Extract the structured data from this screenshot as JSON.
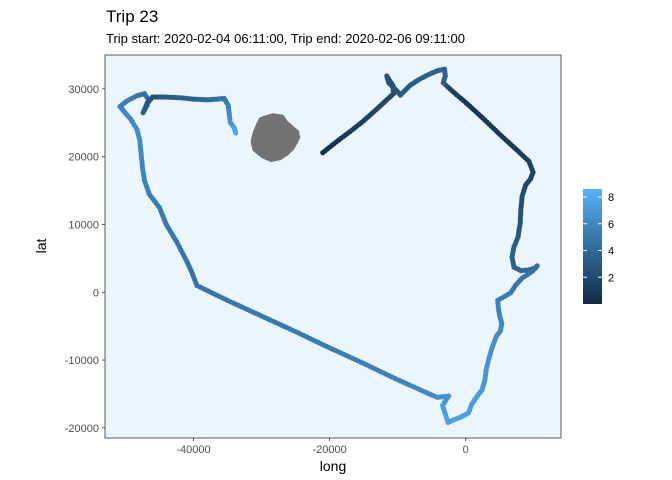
{
  "chart_data": {
    "type": "scatter",
    "title": "Trip 23",
    "subtitle": "Trip start: 2020-02-04 06:11:00, Trip end: 2020-02-06 09:11:00",
    "xlabel": "long",
    "ylabel": "lat",
    "xlim": [
      -53000,
      14000
    ],
    "ylim": [
      -21500,
      35000
    ],
    "xticks": [
      -40000,
      -20000,
      0
    ],
    "yticks": [
      -20000,
      -10000,
      0,
      10000,
      20000,
      30000
    ],
    "grid": false,
    "panel_background": "#eaf5fe",
    "legend": {
      "placement": "right",
      "ticks": [
        2,
        4,
        6,
        8
      ],
      "range": [
        0,
        8.6
      ],
      "color_low": "#132b43",
      "color_high": "#56b1f7"
    },
    "island": {
      "fill": "#737373",
      "outline": [
        [
          -30300,
          25800
        ],
        [
          -28400,
          26400
        ],
        [
          -26800,
          26200
        ],
        [
          -26200,
          25300
        ],
        [
          -25300,
          24500
        ],
        [
          -24500,
          23800
        ],
        [
          -24300,
          22800
        ],
        [
          -24700,
          22000
        ],
        [
          -25200,
          21100
        ],
        [
          -26100,
          20200
        ],
        [
          -27200,
          19500
        ],
        [
          -28600,
          19200
        ],
        [
          -30000,
          19800
        ],
        [
          -31300,
          20900
        ],
        [
          -31600,
          22200
        ],
        [
          -31300,
          23600
        ],
        [
          -30800,
          24800
        ]
      ]
    },
    "track": [
      [
        -21000,
        20600,
        0.2
      ],
      [
        -19000,
        22200,
        0.6
      ],
      [
        -17000,
        23700,
        1.0
      ],
      [
        -15000,
        25300,
        1.3
      ],
      [
        -13200,
        26900,
        1.6
      ],
      [
        -11800,
        28200,
        1.8
      ],
      [
        -10600,
        29300,
        2.0
      ],
      [
        -10700,
        30500,
        2.2
      ],
      [
        -11600,
        31900,
        2.4
      ],
      [
        -11300,
        30900,
        2.5
      ],
      [
        -10300,
        29900,
        2.6
      ],
      [
        -9600,
        29100,
        2.8
      ],
      [
        -9000,
        29700,
        3.0
      ],
      [
        -8200,
        30500,
        3.1
      ],
      [
        -7000,
        31300,
        3.2
      ],
      [
        -5500,
        32100,
        3.3
      ],
      [
        -4100,
        32700,
        3.4
      ],
      [
        -3100,
        32900,
        3.5
      ],
      [
        -3000,
        31900,
        3.5
      ],
      [
        -3300,
        30900,
        3.4
      ],
      [
        -2000,
        29700,
        1.2
      ],
      [
        0,
        28000,
        0.8
      ],
      [
        2500,
        25700,
        0.8
      ],
      [
        5000,
        23300,
        0.9
      ],
      [
        7500,
        21000,
        1.1
      ],
      [
        9300,
        19300,
        1.3
      ],
      [
        9900,
        17700,
        1.5
      ],
      [
        9500,
        16700,
        1.6
      ],
      [
        8800,
        15800,
        1.8
      ],
      [
        8300,
        14200,
        2.1
      ],
      [
        8100,
        12200,
        2.4
      ],
      [
        8000,
        10200,
        2.6
      ],
      [
        7700,
        8200,
        2.8
      ],
      [
        7100,
        6700,
        3.1
      ],
      [
        6800,
        5200,
        3.4
      ],
      [
        7100,
        3700,
        3.6
      ],
      [
        8100,
        3200,
        3.8
      ],
      [
        9300,
        3300,
        4.0
      ],
      [
        10300,
        3600,
        4.1
      ],
      [
        10500,
        3900,
        4.3
      ],
      [
        9800,
        3100,
        4.5
      ],
      [
        8300,
        2100,
        4.7
      ],
      [
        7300,
        1000,
        4.9
      ],
      [
        6600,
        -100,
        5.1
      ],
      [
        5400,
        -800,
        5.3
      ],
      [
        4700,
        -1200,
        5.5
      ],
      [
        4800,
        -2400,
        5.6
      ],
      [
        5000,
        -3500,
        5.8
      ],
      [
        5300,
        -4600,
        5.9
      ],
      [
        5100,
        -5700,
        6.1
      ],
      [
        4500,
        -6500,
        6.3
      ],
      [
        3900,
        -8100,
        6.4
      ],
      [
        3400,
        -9800,
        6.6
      ],
      [
        3000,
        -11500,
        6.8
      ],
      [
        2800,
        -13000,
        6.9
      ],
      [
        2400,
        -14400,
        7.1
      ],
      [
        1700,
        -15300,
        7.2
      ],
      [
        900,
        -16500,
        7.3
      ],
      [
        400,
        -17800,
        7.4
      ],
      [
        -700,
        -18400,
        7.5
      ],
      [
        -1700,
        -18800,
        7.6
      ],
      [
        -2600,
        -19200,
        7.7
      ],
      [
        -3400,
        -16700,
        7.1
      ],
      [
        -2500,
        -15300,
        6.8
      ],
      [
        -4200,
        -15500,
        6.4
      ],
      [
        -6000,
        -14700,
        6.0
      ],
      [
        -10000,
        -12900,
        5.6
      ],
      [
        -15000,
        -10500,
        5.4
      ],
      [
        -20000,
        -8200,
        5.2
      ],
      [
        -25000,
        -5800,
        5.0
      ],
      [
        -30000,
        -3500,
        4.9
      ],
      [
        -35000,
        -1200,
        4.8
      ],
      [
        -39500,
        1000,
        4.7
      ],
      [
        -40300,
        3100,
        4.6
      ],
      [
        -41000,
        4600,
        4.6
      ],
      [
        -42500,
        7500,
        4.8
      ],
      [
        -44000,
        10000,
        5.0
      ],
      [
        -45000,
        12500,
        5.2
      ],
      [
        -46500,
        14500,
        5.4
      ],
      [
        -47200,
        16500,
        5.6
      ],
      [
        -47500,
        18500,
        5.8
      ],
      [
        -47700,
        20500,
        6.0
      ],
      [
        -47900,
        22500,
        6.2
      ],
      [
        -48300,
        24000,
        6.3
      ],
      [
        -49200,
        25500,
        6.0
      ],
      [
        -50300,
        26800,
        5.7
      ],
      [
        -50800,
        27400,
        5.5
      ],
      [
        -49800,
        28200,
        5.2
      ],
      [
        -48300,
        29000,
        4.9
      ],
      [
        -47200,
        29300,
        4.6
      ],
      [
        -46600,
        28400,
        4.2
      ],
      [
        -46800,
        27600,
        3.8
      ],
      [
        -47400,
        26500,
        3.4
      ],
      [
        -46800,
        27900,
        2.8
      ],
      [
        -46000,
        28800,
        2.5
      ],
      [
        -44000,
        28800,
        2.9
      ],
      [
        -42000,
        28700,
        3.3
      ],
      [
        -40000,
        28500,
        3.6
      ],
      [
        -38000,
        28400,
        4.0
      ],
      [
        -36500,
        28500,
        4.4
      ],
      [
        -35500,
        28600,
        4.9
      ],
      [
        -34900,
        27600,
        5.4
      ],
      [
        -34700,
        26000,
        6.0
      ],
      [
        -34600,
        25100,
        6.6
      ],
      [
        -34000,
        24200,
        7.4
      ],
      [
        -33800,
        23500,
        8.0
      ]
    ]
  }
}
